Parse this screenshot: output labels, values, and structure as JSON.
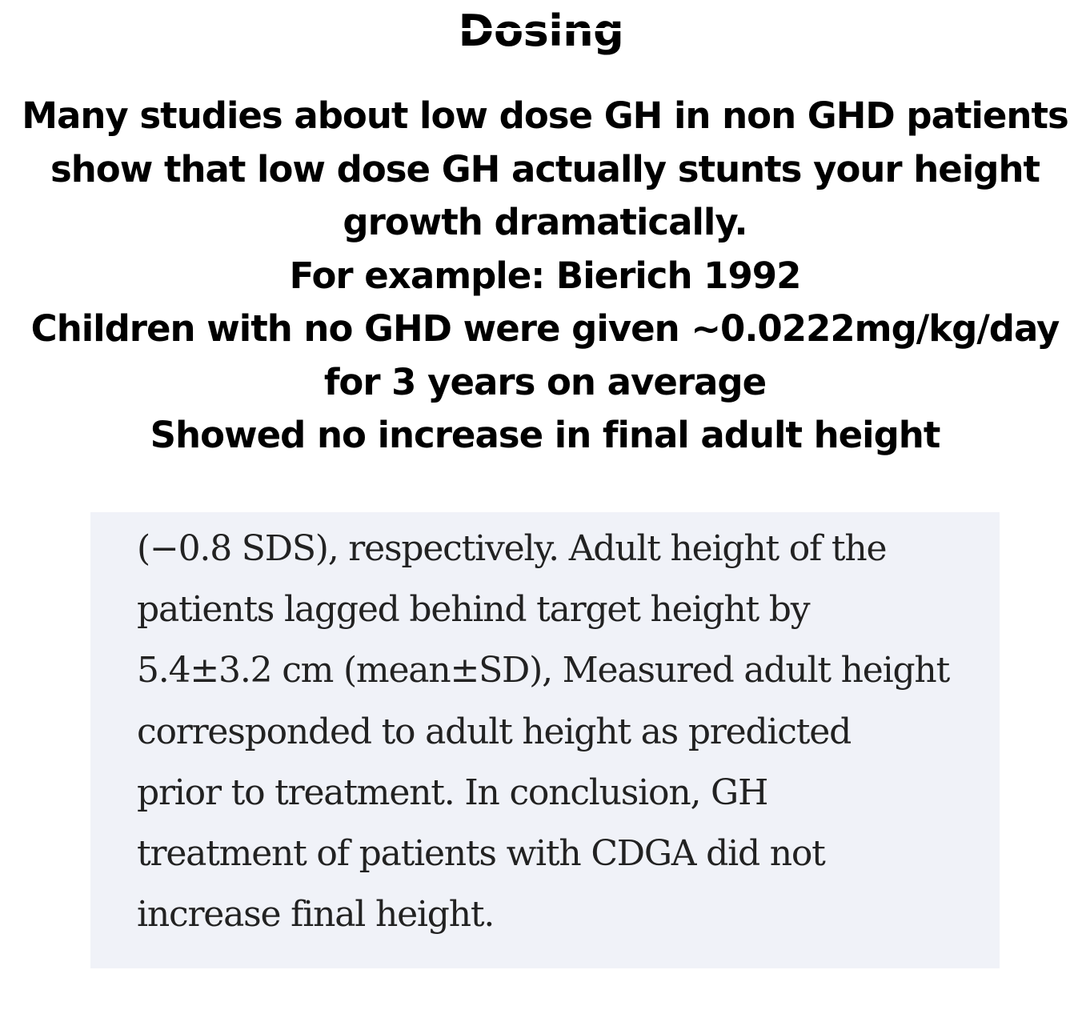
{
  "slide": {
    "title": "Dosing",
    "headline_lines": [
      "Many studies about low dose GH in non GHD patients",
      "show that low dose GH actually stunts your height",
      "growth dramatically.",
      "For example: Bierich 1992",
      "Children with no GHD were given ~0.0222mg/kg/day",
      "for 3 years on average",
      "Showed no increase in final adult height"
    ]
  },
  "excerpt": {
    "lines": [
      "(−0.8 SDS), respectively. Adult height of the",
      "patients lagged behind target height by",
      "5.4±3.2 cm (mean±SD), Measured adult height",
      "corresponded to adult height as predicted",
      "prior to treatment. In conclusion, GH",
      "treatment of patients with CDGA did not",
      "increase final height."
    ]
  },
  "colors": {
    "page_background": "#ffffff",
    "heading_text": "#000000",
    "excerpt_background": "#f0f2f8",
    "excerpt_text": "#222222"
  }
}
